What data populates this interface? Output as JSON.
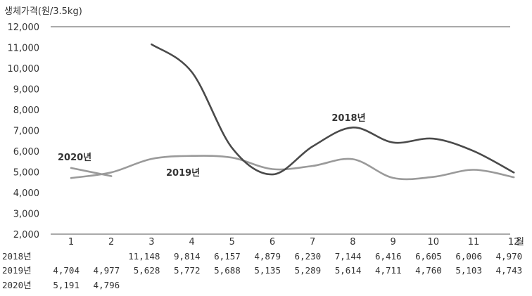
{
  "chart_data": {
    "type": "line",
    "ylabel": "생체가격(원/3.5kg)",
    "ylim": [
      2000,
      12000
    ],
    "yticks": [
      "2,000",
      "3,000",
      "4,000",
      "5,000",
      "6,000",
      "7,000",
      "8,000",
      "9,000",
      "10,000",
      "11,000",
      "12,000"
    ],
    "xunit": "월",
    "x": [
      "1",
      "2",
      "3",
      "4",
      "5",
      "6",
      "7",
      "8",
      "9",
      "10",
      "11",
      "12"
    ],
    "series": [
      {
        "name": "2018년",
        "color": "#4a4a4a",
        "values": [
          null,
          null,
          11148,
          9814,
          6157,
          4879,
          6230,
          7144,
          6416,
          6605,
          6006,
          4970
        ],
        "display": [
          "",
          "",
          "11,148",
          "9,814",
          "6,157",
          "4,879",
          "6,230",
          "7,144",
          "6,416",
          "6,605",
          "6,006",
          "4,970"
        ]
      },
      {
        "name": "2019년",
        "color": "#9a9a9a",
        "values": [
          4704,
          4977,
          5628,
          5772,
          5688,
          5135,
          5289,
          5614,
          4711,
          4760,
          5103,
          4743
        ],
        "display": [
          "4,704",
          "4,977",
          "5,628",
          "5,772",
          "5,688",
          "5,135",
          "5,289",
          "5,614",
          "4,711",
          "4,760",
          "5,103",
          "4,743"
        ]
      },
      {
        "name": "2020년",
        "color": "#9a9a9a",
        "values": [
          5191,
          4796,
          null,
          null,
          null,
          null,
          null,
          null,
          null,
          null,
          null,
          null
        ],
        "display": [
          "5,191",
          "4,796",
          "",
          "",
          "",
          "",
          "",
          "",
          "",
          "",
          "",
          ""
        ]
      }
    ],
    "table_row_labels": [
      "2018년",
      "2019년",
      "2020년"
    ]
  }
}
